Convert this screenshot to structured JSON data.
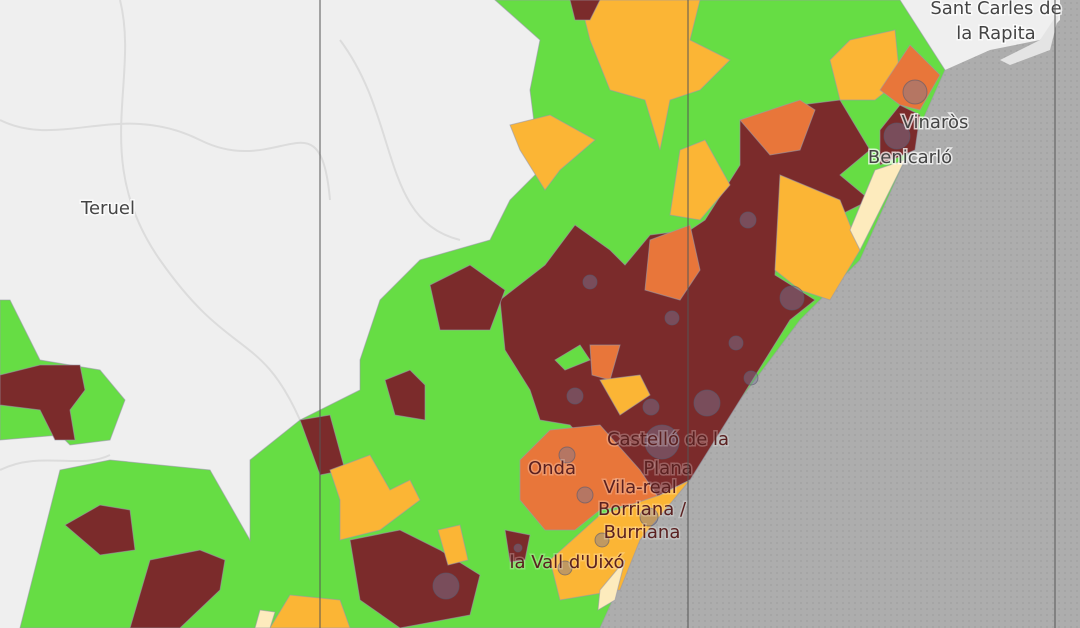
{
  "map": {
    "places": [
      {
        "lines": [
          "Sant Carles de",
          "la Rapita"
        ]
      },
      {
        "lines": [
          "Vinaròs"
        ]
      },
      {
        "lines": [
          "Benicarló"
        ]
      },
      {
        "lines": [
          "Teruel"
        ]
      },
      {
        "lines": [
          "Castelló de la",
          "Plana"
        ]
      },
      {
        "lines": [
          "Onda"
        ]
      },
      {
        "lines": [
          "Vila-real"
        ]
      },
      {
        "lines": [
          "Borriana /",
          "Burriana"
        ]
      },
      {
        "lines": [
          "la Vall d'Uixó"
        ]
      }
    ]
  }
}
